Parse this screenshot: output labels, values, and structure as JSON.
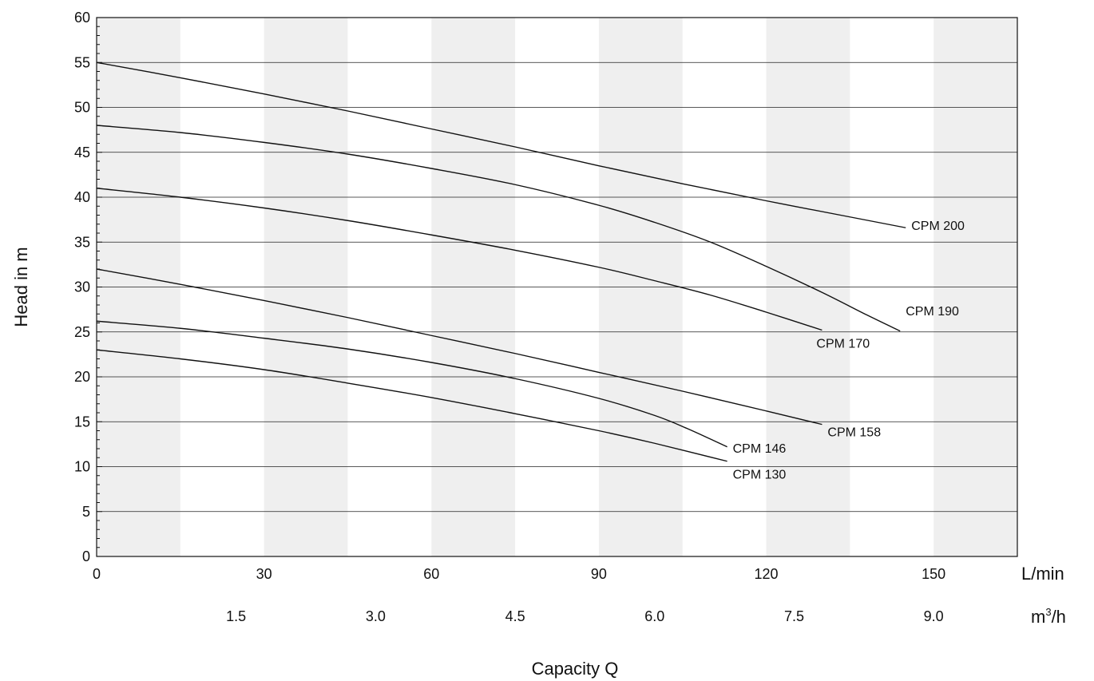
{
  "chart_data": {
    "type": "line",
    "xlabel": "Capacity Q",
    "ylabel": "Head in m",
    "x_unit": "L/min",
    "x2_unit_base": "m",
    "x2_unit_sup": "3",
    "x2_unit_tail": "/h",
    "xlim": [
      0,
      165
    ],
    "ylim": [
      0,
      60
    ],
    "x_ticks": [
      "0",
      "30",
      "60",
      "90",
      "120",
      "150"
    ],
    "x_tick_values": [
      0,
      30,
      60,
      90,
      120,
      150
    ],
    "x2_ticks": [
      "1.5",
      "3.0",
      "4.5",
      "6.0",
      "7.5",
      "9.0"
    ],
    "x2_tick_values": [
      25,
      50,
      75,
      100,
      125,
      150
    ],
    "y_ticks": [
      "0",
      "5",
      "10",
      "15",
      "20",
      "25",
      "30",
      "35",
      "40",
      "45",
      "50",
      "55",
      "60"
    ],
    "y_tick_values": [
      0,
      5,
      10,
      15,
      20,
      25,
      30,
      35,
      40,
      45,
      50,
      55,
      60
    ],
    "grid": "horizontal lines with alternating vertical bands",
    "band_color": "#efefef",
    "series": [
      {
        "name": "CPM 200",
        "x": [
          0,
          15,
          30,
          45,
          60,
          75,
          90,
          105,
          120,
          135,
          145
        ],
        "y": [
          55,
          53.3,
          51.5,
          49.6,
          47.6,
          45.6,
          43.5,
          41.5,
          39.6,
          37.8,
          36.6
        ]
      },
      {
        "name": "CPM 190",
        "x": [
          0,
          15,
          30,
          45,
          60,
          75,
          90,
          100,
          110,
          120,
          130,
          138,
          144
        ],
        "y": [
          48,
          47.2,
          46.1,
          44.8,
          43.2,
          41.4,
          39.1,
          37.2,
          35.0,
          32.3,
          29.4,
          26.9,
          25.1
        ]
      },
      {
        "name": "CPM 170",
        "x": [
          0,
          15,
          30,
          45,
          60,
          75,
          90,
          100,
          110,
          120,
          130
        ],
        "y": [
          41,
          40.0,
          38.8,
          37.4,
          35.8,
          34.1,
          32.2,
          30.7,
          29.1,
          27.2,
          25.2
        ]
      },
      {
        "name": "CPM 158",
        "x": [
          0,
          15,
          30,
          45,
          60,
          75,
          90,
          105,
          120,
          130
        ],
        "y": [
          32,
          30.3,
          28.5,
          26.6,
          24.6,
          22.6,
          20.5,
          18.4,
          16.2,
          14.7
        ]
      },
      {
        "name": "CPM 146",
        "x": [
          0,
          15,
          30,
          45,
          60,
          75,
          90,
          100,
          106,
          113
        ],
        "y": [
          26.2,
          25.4,
          24.3,
          23.1,
          21.6,
          19.8,
          17.6,
          15.7,
          14.2,
          12.2
        ]
      },
      {
        "name": "CPM 130",
        "x": [
          0,
          15,
          30,
          45,
          60,
          75,
          90,
          100,
          113
        ],
        "y": [
          23,
          22.0,
          20.8,
          19.3,
          17.7,
          15.9,
          14.0,
          12.6,
          10.6
        ]
      }
    ],
    "annotations": [
      {
        "text": "CPM 200",
        "at_x": 146,
        "at_y": 36.9
      },
      {
        "text": "CPM 190",
        "at_x": 145,
        "at_y": 27.4
      },
      {
        "text": "CPM 170",
        "at_x": 129,
        "at_y": 23.8
      },
      {
        "text": "CPM 158",
        "at_x": 131,
        "at_y": 13.9
      },
      {
        "text": "CPM 146",
        "at_x": 114,
        "at_y": 12.1
      },
      {
        "text": "CPM 130",
        "at_x": 114,
        "at_y": 9.2
      }
    ]
  }
}
